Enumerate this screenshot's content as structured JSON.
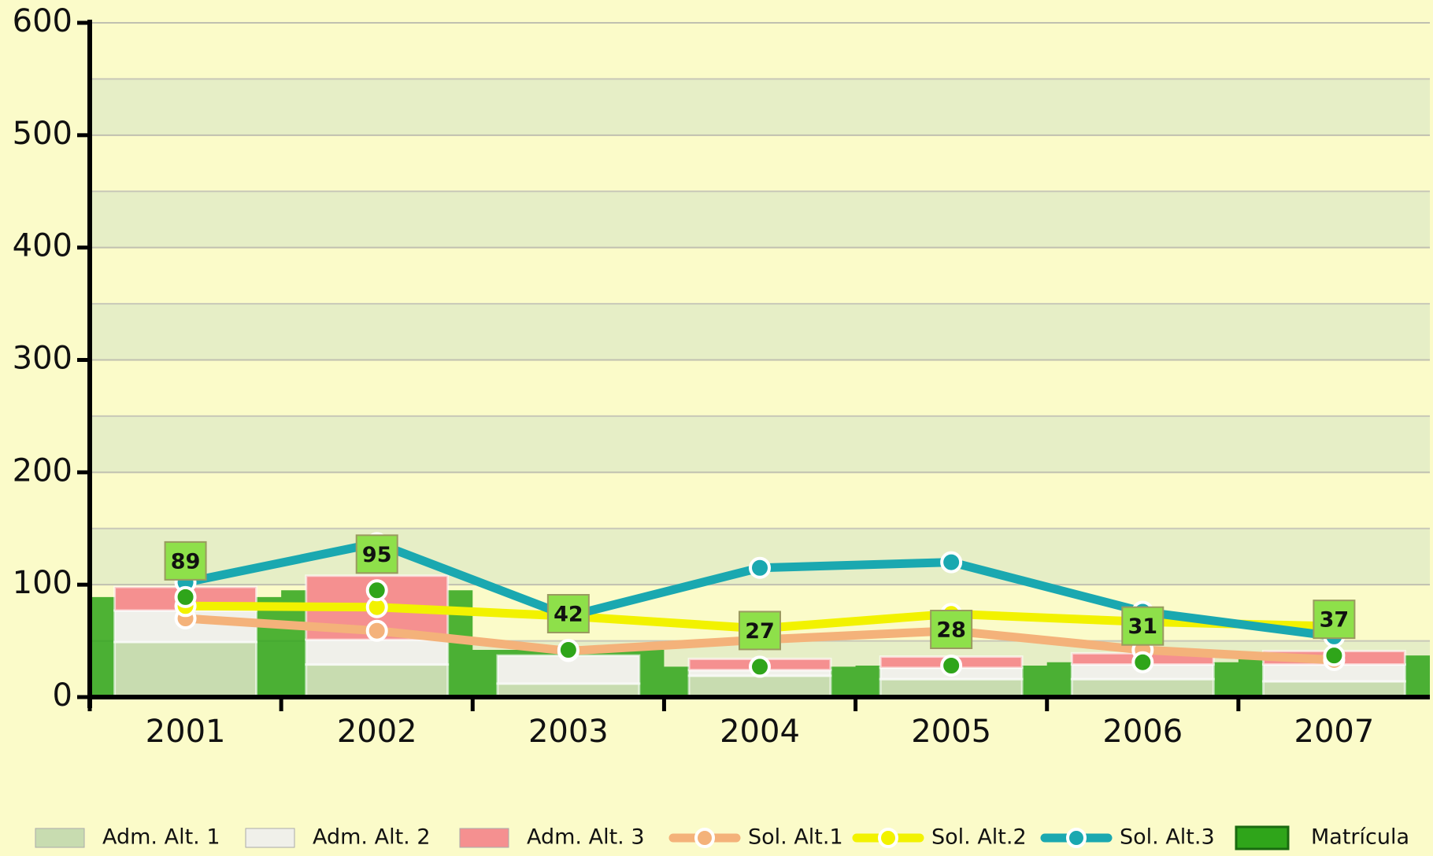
{
  "chart_data": {
    "type": "combo",
    "categories": [
      "2001",
      "2002",
      "2003",
      "2004",
      "2005",
      "2006",
      "2007"
    ],
    "ylim": [
      0,
      600
    ],
    "yticks": [
      0,
      100,
      200,
      300,
      400,
      500,
      600
    ],
    "grid": true,
    "series": [
      {
        "name": "Adm. Alt. 1",
        "kind": "bar",
        "color": "#c8dcb0",
        "values": [
          49,
          29,
          12,
          19,
          16,
          16,
          14
        ]
      },
      {
        "name": "Adm. Alt. 2",
        "kind": "bar",
        "color": "#f0f0ea",
        "values": [
          28,
          22,
          25,
          5,
          10,
          13,
          15
        ]
      },
      {
        "name": "Adm. Alt. 3",
        "kind": "bar",
        "color": "#f59090",
        "values": [
          21,
          57,
          0,
          10,
          10,
          10,
          12
        ]
      },
      {
        "name": "Sol. Alt.1",
        "kind": "line",
        "color": "#f4b27a",
        "values": [
          70,
          59,
          41,
          51,
          59,
          42,
          33
        ]
      },
      {
        "name": "Sol. Alt.2",
        "kind": "line",
        "color": "#f2f200",
        "values": [
          81,
          80,
          72,
          61,
          74,
          67,
          63
        ]
      },
      {
        "name": "Sol. Alt.3",
        "kind": "line",
        "color": "#1aa8b0",
        "values": [
          102,
          137,
          72,
          115,
          120,
          76,
          54
        ]
      },
      {
        "name": "Matrícula",
        "kind": "area",
        "color": "#2fa51a",
        "values": [
          89,
          95,
          42,
          27,
          28,
          31,
          37
        ]
      }
    ]
  }
}
